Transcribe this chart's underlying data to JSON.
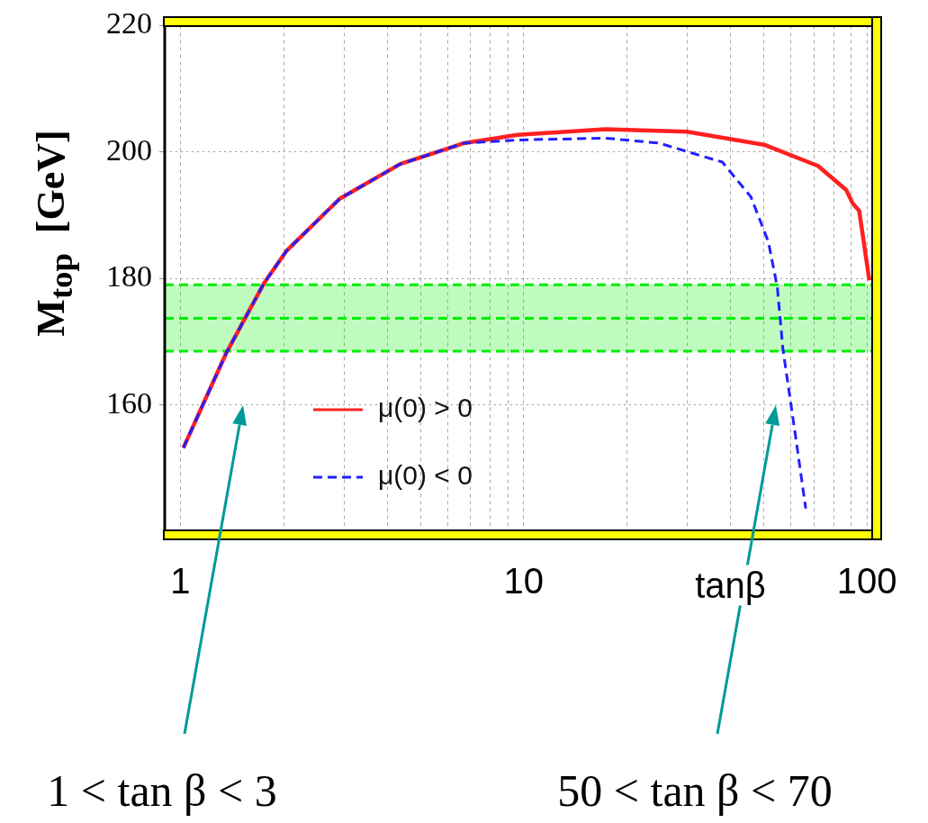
{
  "chart_data": {
    "type": "line",
    "xlabel": "tanβ",
    "ylabel": "M$_{top}$  [GeV]",
    "log": "x",
    "xlim": [
      0.9,
      104
    ],
    "ylim": [
      140,
      220
    ],
    "xticks": [
      1,
      {
        "value": 2,
        "label": null
      },
      {
        "value": 3,
        "label": null
      },
      {
        "value": 4,
        "label": null
      },
      {
        "value": 5,
        "label": null
      },
      {
        "value": 6,
        "label": null
      },
      {
        "value": 7,
        "label": null
      },
      {
        "value": 8,
        "label": null
      },
      {
        "value": 9,
        "label": null
      },
      10,
      {
        "value": 20,
        "label": null
      },
      {
        "value": 30,
        "label": null
      },
      {
        "value": 40,
        "label": null
      },
      {
        "value": 50,
        "label": null
      },
      {
        "value": 60,
        "label": null
      },
      {
        "value": 70,
        "label": null
      },
      {
        "value": 80,
        "label": null
      },
      {
        "value": 90,
        "label": null
      },
      100
    ],
    "yticks": [
      160,
      180,
      200,
      220
    ],
    "grid": true,
    "legend": "bottom left",
    "marker": "none",
    "series": [
      {
        "name": "μ(0) > 0",
        "color": "#ff2020",
        "line_style": "solid",
        "x": [
          1.02,
          1.36,
          1.75,
          2.04,
          2.91,
          4.37,
          6.7,
          9.6,
          17.3,
          29.9,
          50.5,
          72,
          87,
          91,
          94.9,
          101.6
        ],
        "values": [
          153.2,
          168.2,
          179.2,
          184.4,
          192.6,
          198.1,
          201.4,
          202.7,
          203.6,
          203.2,
          201.1,
          197.8,
          194,
          191.8,
          190.7,
          179.7
        ]
      },
      {
        "name": "μ(0) < 0",
        "color": "#2020ff",
        "line_style": "dashed",
        "x": [
          1.02,
          1.36,
          1.75,
          2.04,
          2.91,
          4.37,
          6.7,
          9.6,
          17.3,
          24.8,
          37.9,
          45.9,
          51.6,
          54.8,
          56.9,
          61.9,
          66.3
        ],
        "values": [
          153.2,
          168.2,
          179.2,
          184.4,
          192.6,
          198.1,
          201.4,
          201.9,
          202.2,
          201.4,
          198.4,
          192.9,
          185.8,
          178.6,
          168.8,
          155.1,
          143.6
        ]
      }
    ],
    "bands": [
      {
        "axis": "y",
        "from": 168.5,
        "to": 179,
        "color": "#00ee00"
      }
    ],
    "ref_lines": [
      {
        "axis": "y",
        "value": 179,
        "color": "#00ee00",
        "line_style": "dashed"
      },
      {
        "axis": "y",
        "value": 173.7,
        "color": "#00ee00",
        "line_style": "dashed"
      },
      {
        "axis": "y",
        "value": 168.5,
        "color": "#00ee00",
        "line_style": "dashed"
      }
    ],
    "annotations": [
      "1 < tan β < 3",
      "50 < tan β < 70"
    ]
  }
}
